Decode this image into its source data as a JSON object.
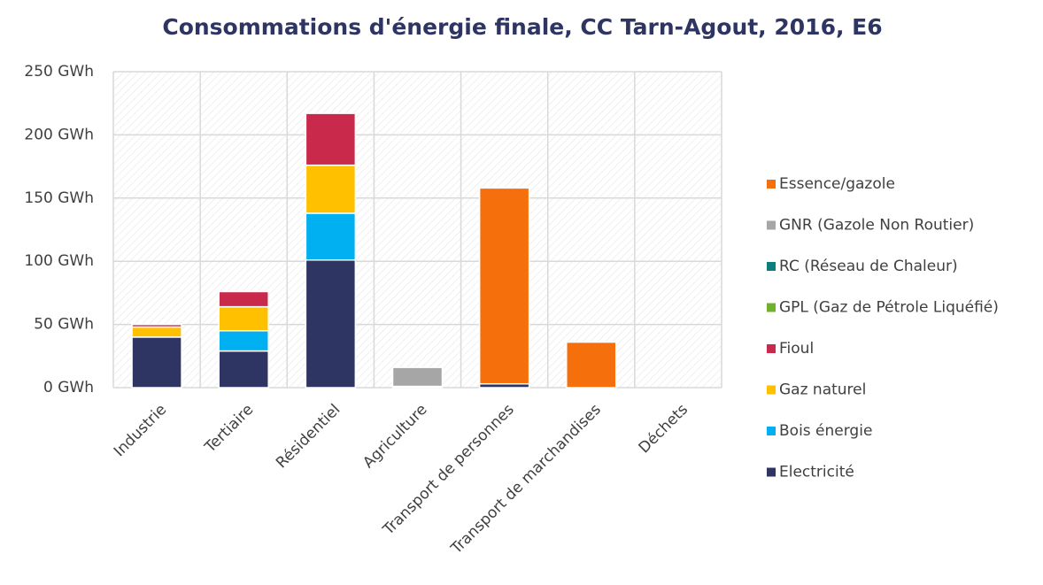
{
  "chart_data": {
    "type": "stacked_bar",
    "title": "Consommations d'énergie finale, CC Tarn-Agout, 2016, E6",
    "categories": [
      "Industrie",
      "Tertiaire",
      "Résidentiel",
      "Agriculture",
      "Transport de personnes",
      "Transport de marchandises",
      "Déchets"
    ],
    "series": [
      {
        "name": "Electricité",
        "color": "#2e3563",
        "values": [
          40,
          29,
          101,
          1,
          3,
          0,
          0
        ]
      },
      {
        "name": "Bois énergie",
        "color": "#00b0f0",
        "values": [
          0,
          16,
          37,
          0,
          0,
          0,
          0
        ]
      },
      {
        "name": "Gaz naturel",
        "color": "#ffc000",
        "values": [
          8,
          19,
          38,
          0,
          0,
          0,
          0
        ]
      },
      {
        "name": "Fioul",
        "color": "#c9294a",
        "values": [
          2,
          12,
          41,
          0,
          0,
          0,
          0
        ]
      },
      {
        "name": "GPL (Gaz de Pétrole Liquéfié)",
        "color": "#70b22e",
        "values": [
          0,
          0,
          0,
          0,
          0,
          0,
          0
        ]
      },
      {
        "name": "RC (Réseau de Chaleur)",
        "color": "#0f7c80",
        "values": [
          0,
          0,
          0,
          0,
          0,
          0,
          0
        ]
      },
      {
        "name": "GNR (Gazole Non Routier)",
        "color": "#a6a6a6",
        "values": [
          0,
          0,
          0,
          15,
          0,
          0,
          0
        ]
      },
      {
        "name": "Essence/gazole",
        "color": "#f5700c",
        "values": [
          0,
          0,
          0,
          0,
          155,
          36,
          0
        ]
      }
    ],
    "ylim": [
      0,
      250
    ],
    "yticks": [
      {
        "value": 0,
        "label": "0 GWh"
      },
      {
        "value": 50,
        "label": "50 GWh"
      },
      {
        "value": 100,
        "label": "100 GWh"
      },
      {
        "value": 150,
        "label": "150 GWh"
      },
      {
        "value": 200,
        "label": "200 GWh"
      },
      {
        "value": 250,
        "label": "250 GWh"
      }
    ],
    "grid": true,
    "legend": "right"
  }
}
